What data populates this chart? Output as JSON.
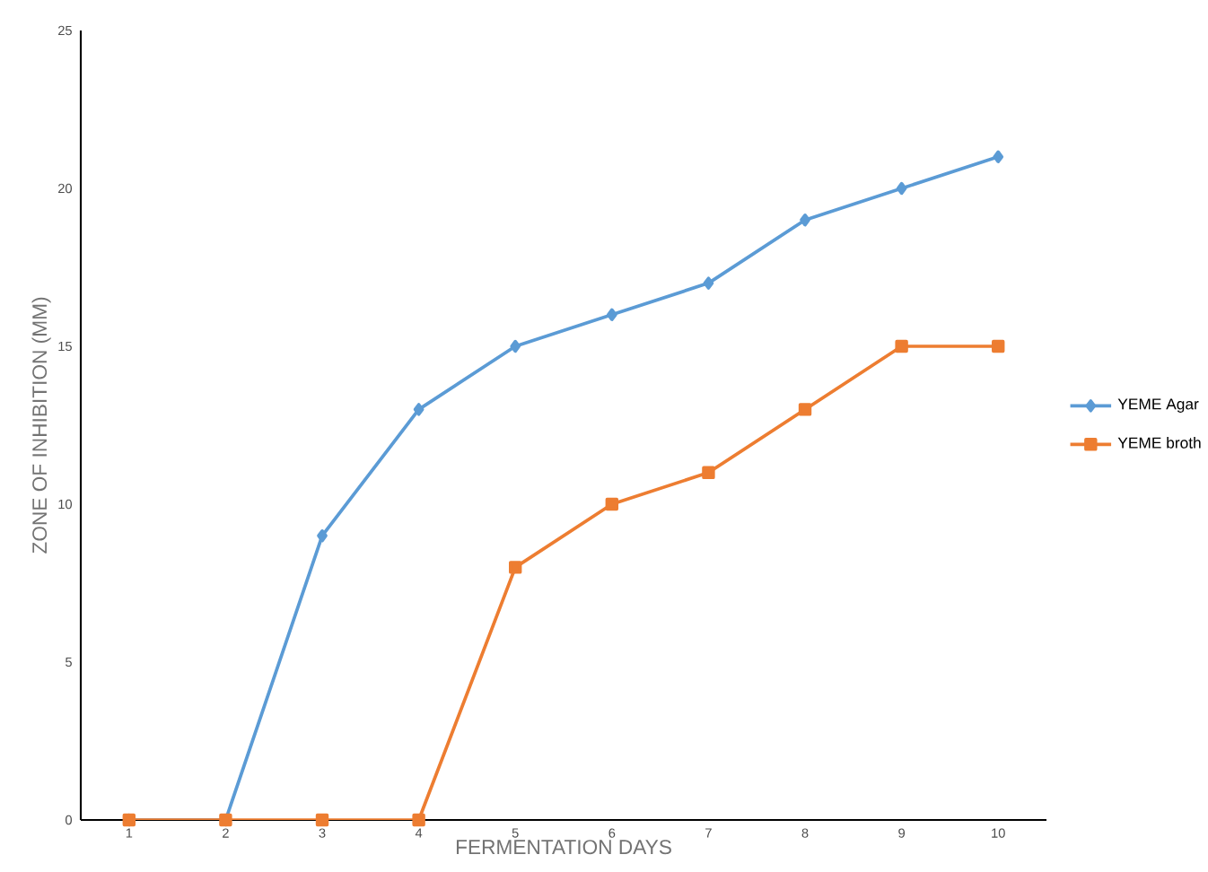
{
  "chart_data": {
    "type": "line",
    "xlabel": "FERMENTATION DAYS",
    "ylabel": "ZONE OF INHIBITION (MM)",
    "categories": [
      "1",
      "2",
      "3",
      "4",
      "5",
      "6",
      "7",
      "8",
      "9",
      "10"
    ],
    "ylim": [
      0,
      25
    ],
    "yticks": [
      0,
      5,
      10,
      15,
      20,
      25
    ],
    "grid": false,
    "legend": "right",
    "line_style": "solid",
    "series": [
      {
        "name": "YEME Agar",
        "color": "#5b9bd5",
        "marker": "diamond",
        "values": [
          0,
          0,
          9,
          13,
          15,
          16,
          17,
          19,
          20,
          21
        ]
      },
      {
        "name": "YEME broth",
        "color": "#ed7d31",
        "marker": "square",
        "values": [
          0,
          0,
          0,
          0,
          8,
          10,
          11,
          13,
          15,
          15
        ]
      }
    ]
  }
}
